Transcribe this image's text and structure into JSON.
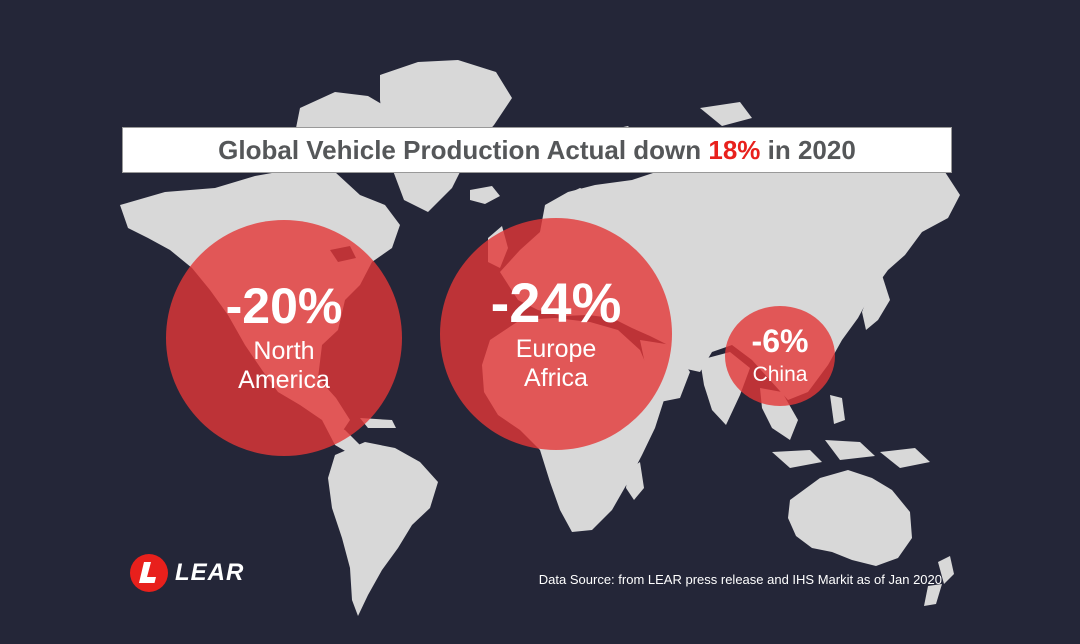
{
  "title": {
    "prefix": "Global Vehicle Production Actual down ",
    "highlight": "18%",
    "suffix": " in 2020"
  },
  "regions": [
    {
      "id": "north-america",
      "change": "-20%",
      "label_line1": "North",
      "label_line2": "America"
    },
    {
      "id": "europe-africa",
      "change": "-24%",
      "label_line1": "Europe",
      "label_line2": "Africa"
    },
    {
      "id": "china",
      "change": "-6%",
      "label_line1": "China",
      "label_line2": ""
    }
  ],
  "logo": {
    "text": "LEAR"
  },
  "source": "Data Source: from LEAR press release and  IHS Markit as of Jan 2020",
  "colors": {
    "background": "#242638",
    "land": "#d8d8d8",
    "bubble": "#e43737",
    "highlight": "#e8201c",
    "title_text": "#555759"
  }
}
